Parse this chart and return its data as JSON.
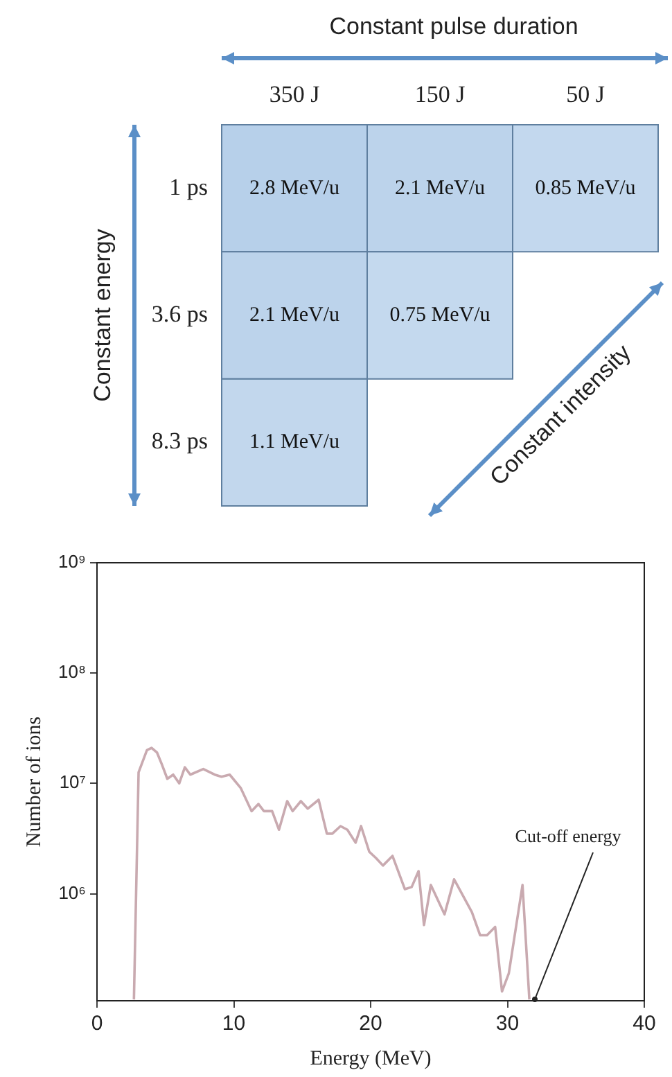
{
  "chart_data": [
    {
      "type": "heatmap",
      "categories": [
        "350 J",
        "150 J",
        "50 J"
      ],
      "y_categories": [
        "1 ps",
        "3.6 ps",
        "8.3 ps"
      ],
      "cells": [
        [
          2.8,
          2.1,
          0.85
        ],
        [
          2.1,
          0.75,
          null
        ],
        [
          1.1,
          null,
          null
        ]
      ],
      "cell_labels": [
        [
          "2.8 MeV/u",
          "2.1 MeV/u",
          "0.85 MeV/u"
        ],
        [
          "2.1 MeV/u",
          "0.75 MeV/u",
          null
        ],
        [
          "1.1 MeV/u",
          null,
          null
        ]
      ],
      "color": "#b7d0ea",
      "annotations": [
        "Constant pulse duration",
        "Constant energy",
        "Constant intensity"
      ]
    },
    {
      "type": "line",
      "xlabel": "Energy (MeV)",
      "ylabel": "Number of ions",
      "x": [
        2.7,
        3.04,
        3.65,
        3.99,
        4.39,
        4.73,
        5.14,
        5.57,
        6.01,
        6.42,
        6.82,
        7.77,
        8.6,
        9.1,
        9.7,
        10.5,
        11.3,
        11.8,
        12.2,
        12.8,
        13.3,
        13.9,
        14.3,
        14.9,
        15.4,
        16.2,
        16.8,
        17.2,
        17.8,
        18.3,
        18.9,
        19.3,
        19.9,
        20.4,
        20.9,
        21.6,
        22.5,
        23.0,
        23.5,
        23.9,
        24.4,
        25.4,
        26.1,
        27.4,
        28.0,
        28.5,
        29.1,
        29.6,
        30.1,
        31.1,
        31.6
      ],
      "series": [
        {
          "color": "#c9aab0",
          "values": [
            110000,
            12600000,
            20000000,
            21000000,
            19000000,
            15000000,
            11000000,
            12000000,
            10000000,
            14000000,
            12000000,
            13500000,
            12000000,
            11500000,
            12000000,
            9100000,
            5600000,
            6500000,
            5600000,
            5600000,
            3800000,
            6900000,
            5600000,
            6900000,
            5900000,
            7100000,
            3500000,
            3500000,
            4100000,
            3800000,
            2900000,
            4100000,
            2400000,
            2100000,
            1800000,
            2200000,
            1100000,
            1150000,
            1600000,
            520000,
            1200000,
            650000,
            1350000,
            680000,
            420000,
            420000,
            500000,
            130000,
            190000,
            1200000,
            110000
          ]
        }
      ],
      "xlim": [
        0,
        40
      ],
      "xticks": [
        0,
        10,
        20,
        30,
        40
      ],
      "log": "y",
      "ylim": [
        107000,
        1000000000
      ],
      "yticks": [
        {
          "value": 1000000,
          "label": "10⁶"
        },
        {
          "value": 10000000,
          "label": "10⁷"
        },
        {
          "value": 100000000,
          "label": "10⁸"
        },
        {
          "value": 1000000000,
          "label": "10⁹"
        }
      ],
      "annotations": [
        {
          "text": "Cut-off energy",
          "x": 32,
          "y": 107000
        }
      ]
    }
  ]
}
